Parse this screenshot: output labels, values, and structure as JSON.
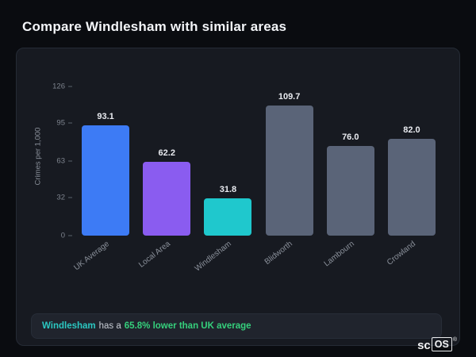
{
  "page": {
    "title": "Compare Windlesham with similar areas"
  },
  "chart_data": {
    "type": "bar",
    "categories": [
      "UK Average",
      "Local Area",
      "Windlesham",
      "Blidworth",
      "Lambourn",
      "Crowland"
    ],
    "values": [
      93.1,
      62.2,
      31.8,
      109.7,
      76.0,
      82.0
    ],
    "value_labels": [
      "93.1",
      "62.2",
      "31.8",
      "109.7",
      "76.0",
      "82.0"
    ],
    "bar_colors": [
      "#3d7bf5",
      "#8a5cf0",
      "#1fc8cd",
      "#5a6478",
      "#5a6478",
      "#5a6478"
    ],
    "ylabel": "Crimes per 1,000",
    "yticks": [
      126,
      95,
      63,
      32,
      0
    ],
    "ylim": [
      0,
      126
    ],
    "grid": false,
    "legend": "none",
    "title": ""
  },
  "footer": {
    "subject": "Windlesham",
    "middle": "has a",
    "highlight": "65.8% lower than UK average",
    "subject_color": "#2bc8c2",
    "highlight_color": "#35d07c"
  },
  "logo": {
    "prefix": "sc",
    "boxed": "OS",
    "registered": "®"
  }
}
